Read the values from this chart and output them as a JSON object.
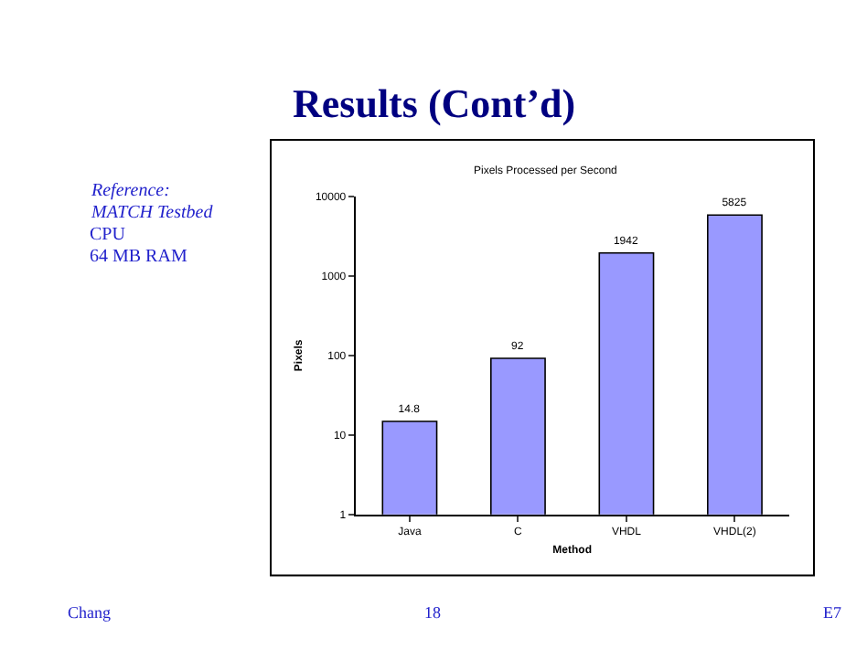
{
  "chart_data": {
    "type": "bar",
    "title": "Results (Cont’d)",
    "subtitle": "Pixels Processed per Second",
    "xlabel": "Method",
    "ylabel": "Pixels",
    "categories": [
      "Java",
      "C",
      "VHDL",
      "VHDL(2)"
    ],
    "values": [
      14.8,
      92,
      1942,
      5825
    ],
    "color": "#9999ff",
    "log": "y",
    "ylim": [
      1,
      10000
    ],
    "yticks": [
      1,
      10,
      100,
      1000,
      10000
    ],
    "data_labels": true,
    "legend": false,
    "annotations": [
      "Reference:",
      "MATCH Testbed",
      "CPU",
      "64 MB RAM",
      "Chang",
      "18",
      "E7"
    ]
  }
}
